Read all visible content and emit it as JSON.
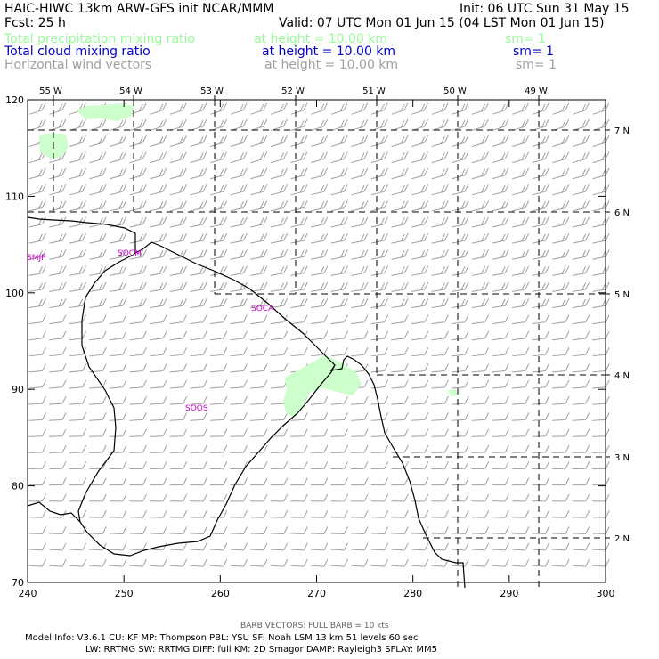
{
  "header": {
    "title": "HAIC-HIWC 13km ARW-GFS init   NCAR/MMM",
    "init": "Init: 06 UTC Sun 31 May 15",
    "fcst": "Fcst:    25 h",
    "valid": "Valid: 07 UTC Mon 01 Jun 15 (04 LST Mon 01 Jun 15)",
    "fields": [
      {
        "name": "Total precipitation mixing ratio",
        "level": "at height = 10.00 km",
        "sm": "sm= 1",
        "color": "#98fb98"
      },
      {
        "name": "Total cloud mixing ratio",
        "level": "at height = 10.00 km",
        "sm": "sm= 1",
        "color": "#0000cd"
      },
      {
        "name": "Horizontal wind vectors",
        "level": "at height = 10.00 km",
        "sm": "sm= 1",
        "color": "#a0a0a0"
      }
    ]
  },
  "map": {
    "x_ticks": [
      "240",
      "250",
      "260",
      "270",
      "280",
      "290",
      "300"
    ],
    "y_ticks": [
      "70",
      "80",
      "90",
      "100",
      "110",
      "120"
    ],
    "lon_labels": [
      "55 W",
      "54 W",
      "53 W",
      "52 W",
      "51 W",
      "50 W",
      "49 W"
    ],
    "lat_labels": [
      "7 N",
      "6 N",
      "5 N",
      "4 N",
      "3 N",
      "2 N"
    ],
    "stations": [
      "SMJP",
      "SOCM",
      "SOCA",
      "SOOS"
    ],
    "coast_color": "#000000",
    "precip_color": "#ccffcc",
    "station_color": "#cc00cc",
    "barb_color": "#a0a0a0"
  },
  "footer": {
    "barb_note": "BARB VECTORS:  FULL BARB = 10 kts",
    "model_line1": "Model Info: V3.6.1    CU: KF        MP: Thompson     PBL: YSU       SF: Noah LSM      13 km    51 levels    60 sec",
    "model_line2": "LW: RRTMG    SW: RRTMG   DIFF: full    KM: 2D Smagor DAMP: Rayleigh3   SFLAY: MM5"
  }
}
